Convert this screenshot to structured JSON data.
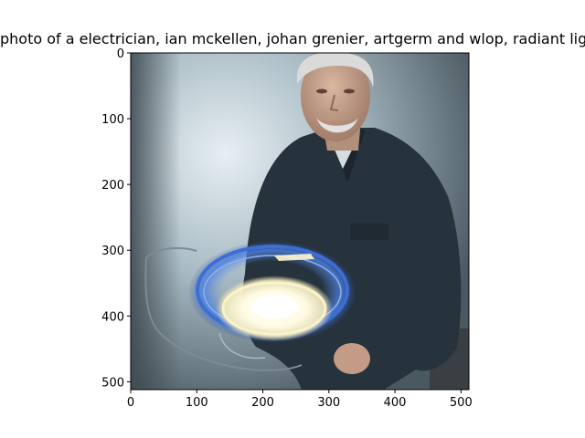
{
  "figure": {
    "title": "photo of a electrician, ian mckellen, johan grenier, artgerm and wlop, radiant light"
  },
  "image": {
    "description_icon": "photo-of-man-holding-glowing-light-ring",
    "colors": {
      "background_light": "#d9e6ec",
      "background_dark": "#4c5a62",
      "shirt": "#28343f",
      "skin": "#c9a690",
      "hair": "#d8d8d8",
      "glow_white": "#fffbe8",
      "glow_blue": "#3b74d8"
    }
  },
  "axes": {
    "x_range": [
      0,
      512
    ],
    "y_range": [
      512,
      0
    ],
    "x_ticks": [
      "0",
      "100",
      "200",
      "300",
      "400",
      "500"
    ],
    "y_ticks": [
      "0",
      "100",
      "200",
      "300",
      "400",
      "500"
    ]
  }
}
